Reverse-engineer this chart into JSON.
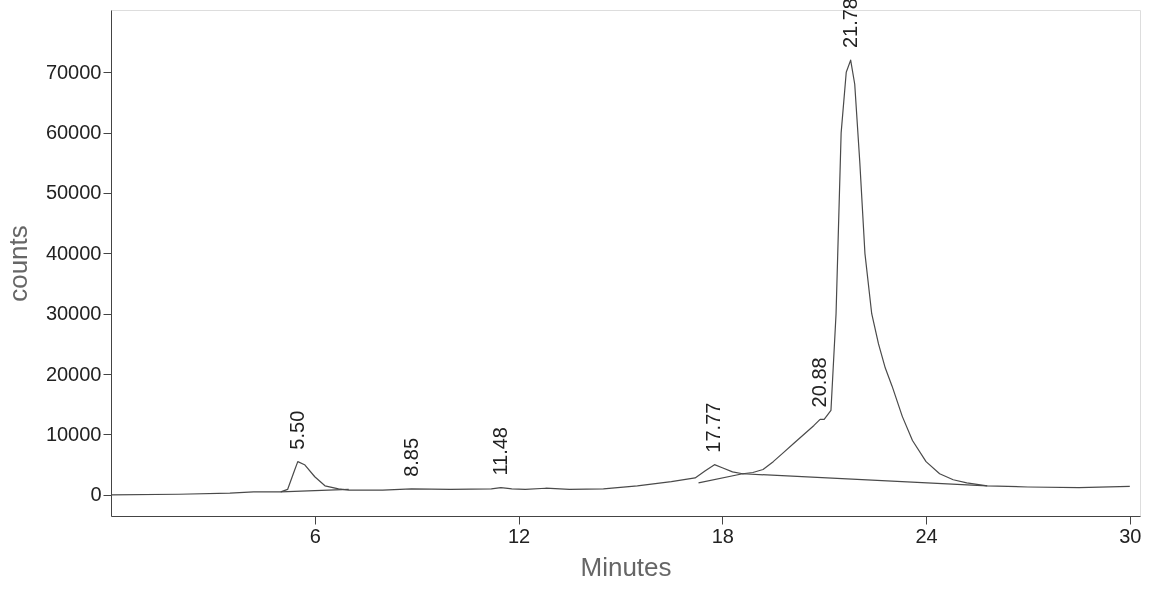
{
  "chart_data": {
    "type": "line",
    "xlabel": "Minutes",
    "ylabel": "counts",
    "xlim": [
      0,
      30.3
    ],
    "ylim": [
      -3500,
      80300
    ],
    "xticks": [
      6,
      12,
      18,
      24,
      30
    ],
    "yticks": [
      0,
      10000,
      20000,
      30000,
      40000,
      50000,
      60000,
      70000
    ],
    "grid": false,
    "marker": "none",
    "line_style": "solid",
    "series": [
      {
        "color": "#4a4a4a",
        "x": [
          0,
          2,
          3.5,
          4.2,
          5.0,
          5.2,
          5.4,
          5.5,
          5.7,
          6.0,
          6.3,
          6.7,
          7.0,
          8.0,
          8.85,
          10,
          11.2,
          11.48,
          11.8,
          12.2,
          12.8,
          13.5,
          14.5,
          15.5,
          16.5,
          17.2,
          17.5,
          17.77,
          18.0,
          18.3,
          18.6,
          18.9,
          19.2,
          19.5,
          19.8,
          20.1,
          20.4,
          20.7,
          20.88,
          21.0,
          21.2,
          21.35,
          21.5,
          21.65,
          21.78,
          21.9,
          22.05,
          22.2,
          22.4,
          22.6,
          22.8,
          23.0,
          23.3,
          23.6,
          24.0,
          24.4,
          24.8,
          25.2,
          25.8,
          27,
          28.5,
          30
        ],
        "values": [
          0,
          100,
          300,
          500,
          500,
          900,
          4000,
          5500,
          5000,
          3000,
          1500,
          1000,
          800,
          800,
          1000,
          900,
          1000,
          1200,
          1000,
          900,
          1100,
          900,
          1000,
          1500,
          2200,
          2800,
          4000,
          5000,
          4500,
          3800,
          3500,
          3700,
          4200,
          5500,
          7000,
          8500,
          10000,
          11500,
          12500,
          12500,
          14000,
          30000,
          60000,
          70000,
          72000,
          68000,
          55000,
          40000,
          30000,
          25000,
          21000,
          18000,
          13000,
          9000,
          5500,
          3500,
          2500,
          2000,
          1500,
          1300,
          1200,
          1400
        ]
      },
      {
        "color": "#4a4a4a",
        "x": [
          5.0,
          7.0
        ],
        "values": [
          500,
          900
        ]
      },
      {
        "color": "#4a4a4a",
        "x": [
          17.3,
          18.6,
          25.8
        ],
        "values": [
          2000,
          3500,
          1500
        ]
      }
    ],
    "annotations": [
      {
        "text": "5.50",
        "x": 5.5,
        "y": 5500
      },
      {
        "text": "8.85",
        "x": 8.85,
        "y": 1000
      },
      {
        "text": "11.48",
        "x": 11.48,
        "y": 1200
      },
      {
        "text": "17.77",
        "x": 17.77,
        "y": 5000
      },
      {
        "text": "20.88",
        "x": 20.88,
        "y": 12500
      },
      {
        "text": "21.78",
        "x": 21.78,
        "y": 72000
      }
    ]
  }
}
